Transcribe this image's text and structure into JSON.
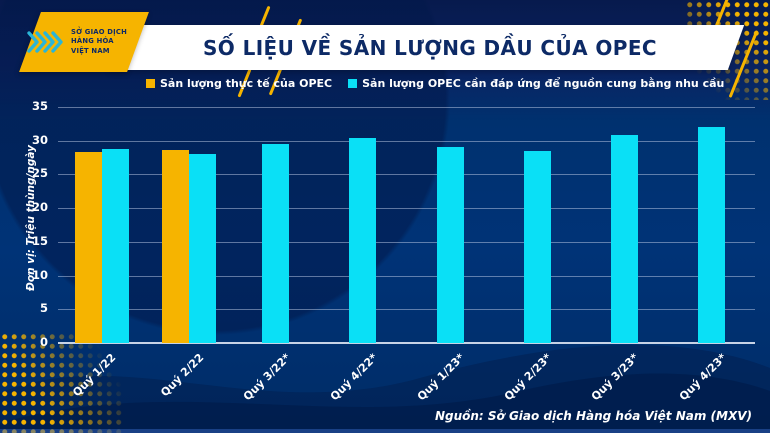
{
  "header": {
    "title": "SỐ LIỆU VỀ SẢN LƯỢNG DẦU CỦA OPEC",
    "logo": {
      "icon": "mxv-chevrons-icon",
      "line1": "SỞ GIAO DỊCH",
      "line2": "HÀNG HÓA",
      "line3": "VIỆT NAM"
    }
  },
  "footer": {
    "source": "Nguồn: Sở Giao dịch Hàng hóa Việt Nam (MXV)"
  },
  "colors": {
    "actual": "#f6b400",
    "required": "#0ae0f6",
    "background": "#003377",
    "title_text": "#0d2a66",
    "logo_icon": "#2ab5d8"
  },
  "chart_data": {
    "type": "bar",
    "title": "SỐ LIỆU VỀ SẢN LƯỢNG DẦU CỦA OPEC",
    "categories": [
      "Quý 1/22",
      "Quý 2/22",
      "Quý 3/22*",
      "Quý 4/22*",
      "Quý 1/23*",
      "Quý 2/23*",
      "Quý 3/23*",
      "Quý 4/23*"
    ],
    "series": [
      {
        "name": "Sản lượng thực tế của OPEC",
        "color": "#f6b400",
        "values": [
          28.4,
          28.6,
          null,
          null,
          null,
          null,
          null,
          null
        ]
      },
      {
        "name": "Sản lượng OPEC cần đáp ứng để nguồn cung bằng nhu cầu",
        "color": "#0ae0f6",
        "values": [
          28.7,
          28.0,
          29.5,
          30.4,
          29.0,
          28.5,
          30.9,
          32.1
        ]
      }
    ],
    "xlabel": "",
    "ylabel": "Đơn vị: Triệu thùng/ngày",
    "ylim": [
      0,
      35
    ],
    "ytick_step": 5,
    "grid": true,
    "legend_position": "top"
  }
}
